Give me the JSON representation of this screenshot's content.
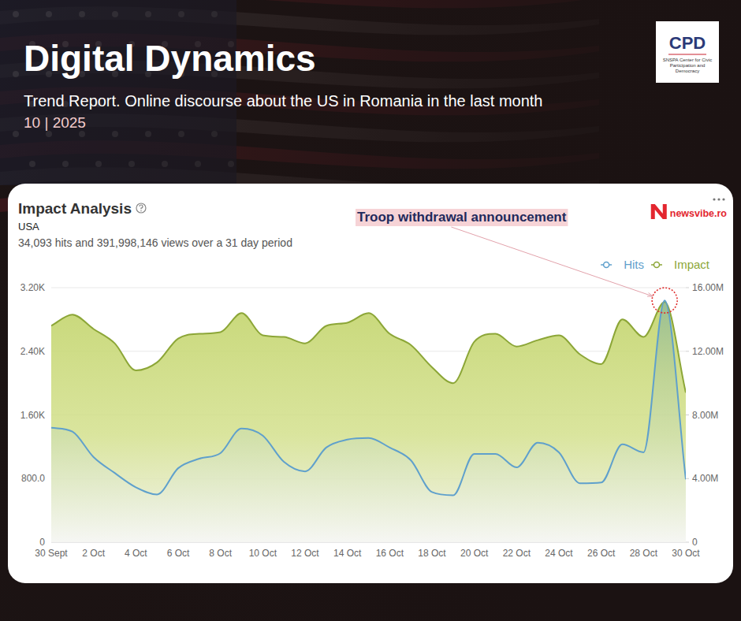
{
  "header": {
    "title": "Digital Dynamics",
    "subtitle": "Trend Report. Online discourse about the US in Romania in the last month",
    "date": "10 | 2025",
    "logo": {
      "text": "CPD",
      "caption": "SNSPA Center for Civic Participation and Democracy"
    }
  },
  "chart_data": {
    "type": "area",
    "title": "Impact Analysis",
    "subtitle": "USA",
    "description": "34,093 hits and 391,998,146 views over a 31 day period",
    "source": "newsvibe.ro",
    "annotations": [
      {
        "text": "Troop withdrawal announcement"
      }
    ],
    "categories": [
      "30 Sept",
      null,
      "2 Oct",
      null,
      "4 Oct",
      null,
      "6 Oct",
      null,
      "8 Oct",
      null,
      "10 Oct",
      null,
      "12 Oct",
      null,
      "14 Oct",
      null,
      "16 Oct",
      null,
      "18 Oct",
      null,
      "20 Oct",
      null,
      "22 Oct",
      null,
      "24 Oct",
      null,
      "26 Oct",
      null,
      "28 Oct",
      null,
      "30 Oct"
    ],
    "series": [
      {
        "name": "Hits",
        "color": "#5fa0cc",
        "axis": "y",
        "values": [
          1440,
          1390,
          1070,
          870,
          690,
          600,
          930,
          1050,
          1120,
          1430,
          1340,
          1010,
          890,
          1190,
          1290,
          1310,
          1190,
          1030,
          630,
          590,
          1110,
          1110,
          940,
          1250,
          1130,
          740,
          750,
          1230,
          1130,
          3040,
          790
        ]
      },
      {
        "name": "Impact",
        "color": "#8ca637",
        "axis": "y2",
        "values": [
          13600000,
          14300000,
          13400000,
          12500000,
          10800000,
          11300000,
          12800000,
          13100000,
          13200000,
          14400000,
          13000000,
          12900000,
          12500000,
          13600000,
          13800000,
          14400000,
          13100000,
          12400000,
          11000000,
          10000000,
          12600000,
          13100000,
          12300000,
          12700000,
          13000000,
          11800000,
          11200000,
          14000000,
          12900000,
          15100000,
          9400000
        ]
      }
    ],
    "ylim": [
      0,
      3200
    ],
    "yticks": [
      0,
      {
        "value": 800,
        "label": "800.0"
      },
      {
        "value": 1600,
        "label": "1.60K"
      },
      {
        "value": 2400,
        "label": "2.40K"
      },
      {
        "value": 3200,
        "label": "3.20K"
      }
    ],
    "y2lim": [
      0,
      16000000
    ],
    "y2ticks": [
      0,
      {
        "value": 4000000,
        "label": "4.00M"
      },
      {
        "value": 8000000,
        "label": "8.00M"
      },
      {
        "value": 12000000,
        "label": "12.00M"
      },
      {
        "value": 16000000,
        "label": "16.00M"
      }
    ],
    "grid": true,
    "legend": "top-right"
  }
}
